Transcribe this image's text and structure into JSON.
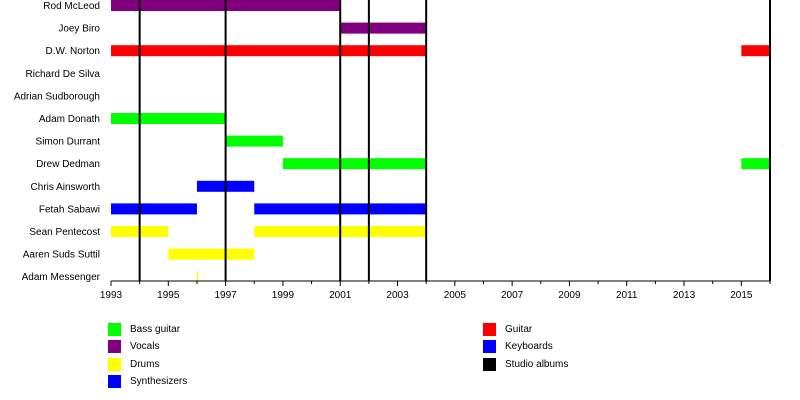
{
  "chart_data": {
    "type": "timeline",
    "x_ticks": [
      "1993",
      "1995",
      "1997",
      "1999",
      "2001",
      "2003",
      "2005",
      "2007",
      "2009",
      "2011",
      "2013",
      "2015"
    ],
    "xlim": [
      1993,
      2016
    ],
    "colors": {
      "Bass guitar": "#00ff00",
      "Vocals": "#800080",
      "Drums": "#ffff00",
      "Synthesizers": "#0000ff",
      "Guitar": "#ff0000",
      "Keyboards": "#0000ff",
      "Studio albums": "#000000"
    },
    "members": [
      {
        "name": "Rod McLeod",
        "spans": [
          {
            "role": "Vocals",
            "start": 1993,
            "end": 2001
          }
        ]
      },
      {
        "name": "Joey Biro",
        "spans": [
          {
            "role": "Vocals",
            "start": 2001,
            "end": 2004
          }
        ]
      },
      {
        "name": "D.W. Norton",
        "spans": [
          {
            "role": "Guitar",
            "start": 1993,
            "end": 2004
          },
          {
            "role": "Guitar",
            "start": 2015,
            "end": 2016
          }
        ]
      },
      {
        "name": "Richard De Silva",
        "spans": []
      },
      {
        "name": "Adrian Sudborough",
        "spans": []
      },
      {
        "name": "Adam Donath",
        "spans": [
          {
            "role": "Bass guitar",
            "start": 1993,
            "end": 1997
          }
        ]
      },
      {
        "name": "Simon Durrant",
        "spans": [
          {
            "role": "Bass guitar",
            "start": 1997,
            "end": 1999
          }
        ]
      },
      {
        "name": "Drew Dedman",
        "spans": [
          {
            "role": "Bass guitar",
            "start": 1999,
            "end": 2004
          },
          {
            "role": "Bass guitar",
            "start": 2015,
            "end": 2016
          }
        ]
      },
      {
        "name": "Chris Ainsworth",
        "spans": [
          {
            "role": "Synthesizers",
            "start": 1996,
            "end": 1998
          }
        ]
      },
      {
        "name": "Fetah Sabawi",
        "spans": [
          {
            "role": "Keyboards",
            "start": 1993,
            "end": 1996
          },
          {
            "role": "Keyboards",
            "start": 1998,
            "end": 2004
          }
        ]
      },
      {
        "name": "Sean Pentecost",
        "spans": [
          {
            "role": "Drums",
            "start": 1993,
            "end": 1995
          },
          {
            "role": "Drums",
            "start": 1998,
            "end": 2004
          }
        ]
      },
      {
        "name": "Aaren Suds Suttil",
        "spans": [
          {
            "role": "Drums",
            "start": 1995,
            "end": 1998
          }
        ]
      },
      {
        "name": "Adam Messenger",
        "spans": [
          {
            "role": "Drums",
            "start": 1996,
            "end": 1996.05
          }
        ]
      }
    ],
    "studio_albums": [
      1994,
      1997,
      2001,
      2002,
      2004,
      2016
    ],
    "legend": [
      {
        "label": "Bass guitar",
        "role": "Bass guitar",
        "column": 0
      },
      {
        "label": "Vocals",
        "role": "Vocals",
        "column": 0
      },
      {
        "label": "Drums",
        "role": "Drums",
        "column": 0
      },
      {
        "label": "Synthesizers",
        "role": "Synthesizers",
        "column": 0
      },
      {
        "label": "Guitar",
        "role": "Guitar",
        "column": 1
      },
      {
        "label": "Keyboards",
        "role": "Keyboards",
        "column": 1
      },
      {
        "label": "Studio albums",
        "role": "Studio albums",
        "column": 1
      }
    ]
  }
}
